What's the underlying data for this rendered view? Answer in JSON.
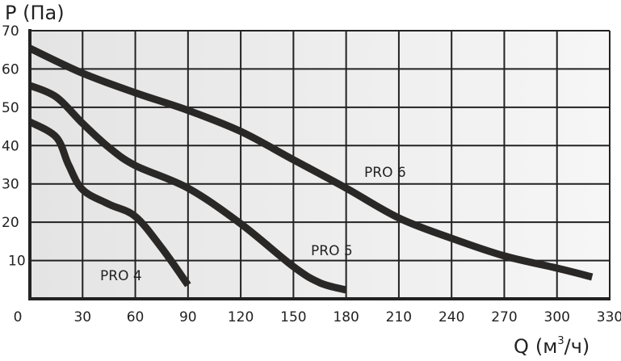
{
  "chart_data": {
    "type": "line",
    "ylabel": "P (Па)",
    "xlabel_main": "Q",
    "xlabel_unit_pre": "(м",
    "xlabel_unit_sup": "3",
    "xlabel_unit_post": "/ч)",
    "xlim": [
      0,
      330
    ],
    "ylim": [
      0,
      70
    ],
    "grid": true,
    "x_ticks": [
      "0",
      "30",
      "60",
      "90",
      "120",
      "150",
      "180",
      "210",
      "240",
      "270",
      "300",
      "330"
    ],
    "y_ticks": [
      "10",
      "20",
      "30",
      "40",
      "50",
      "60",
      "70"
    ],
    "series": [
      {
        "name": "PRO 4",
        "x": [
          0,
          15,
          22,
          30,
          45,
          60,
          75,
          90
        ],
        "y": [
          46.2,
          42.2,
          35,
          28.5,
          24.7,
          21.5,
          13.3,
          3.6
        ]
      },
      {
        "name": "PRO 5",
        "x": [
          0,
          15,
          30,
          45,
          60,
          90,
          120,
          150,
          165,
          180
        ],
        "y": [
          55.7,
          52.7,
          45.8,
          39.5,
          34.8,
          28.9,
          19.6,
          8.4,
          4.2,
          2.3
        ]
      },
      {
        "name": "PRO 6",
        "x": [
          0,
          30,
          60,
          90,
          120,
          150,
          180,
          210,
          240,
          270,
          300,
          320
        ],
        "y": [
          65.4,
          58.9,
          53.8,
          49.2,
          43.7,
          36.3,
          28.9,
          21.1,
          15.8,
          11.2,
          8,
          5.7
        ]
      }
    ],
    "colors": {
      "line": "#2a2826",
      "grid": "#222222",
      "background": "#e8e8e8"
    }
  }
}
